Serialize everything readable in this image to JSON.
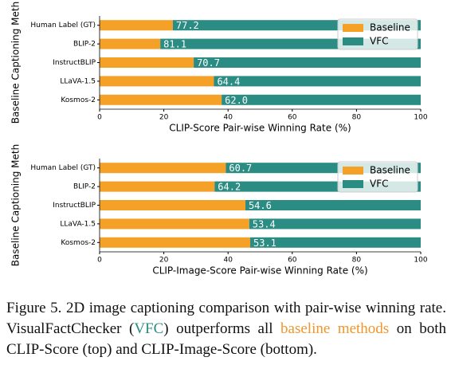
{
  "chart_data": [
    {
      "type": "bar",
      "orientation": "horizontal",
      "stacked": true,
      "ylabel": "Baseline Captioning Meth",
      "xlabel": "CLIP-Score Pair-wise Winning Rate (%)",
      "categories": [
        "Human Label (GT)",
        "BLIP-2",
        "InstructBLIP",
        "LLaVA-1.5",
        "Kosmos-2"
      ],
      "series": [
        {
          "name": "Baseline",
          "color": "#f5a128",
          "values": [
            22.8,
            18.9,
            29.3,
            35.6,
            38.0
          ]
        },
        {
          "name": "VFC",
          "color": "#2a8c82",
          "values": [
            77.2,
            81.1,
            70.7,
            64.4,
            62.0
          ],
          "value_labels": [
            "77.2",
            "81.1",
            "70.7",
            "64.4",
            "62.0"
          ]
        }
      ],
      "xlim": [
        0,
        100
      ],
      "xticks": [
        0,
        20,
        40,
        60,
        80,
        100
      ],
      "legend": "upper right"
    },
    {
      "type": "bar",
      "orientation": "horizontal",
      "stacked": true,
      "ylabel": "Baseline Captioning Meth",
      "xlabel": "CLIP-Image-Score Pair-wise Winning Rate (%)",
      "categories": [
        "Human Label (GT)",
        "BLIP-2",
        "InstructBLIP",
        "LLaVA-1.5",
        "Kosmos-2"
      ],
      "series": [
        {
          "name": "Baseline",
          "color": "#f5a128",
          "values": [
            39.3,
            35.8,
            45.4,
            46.6,
            46.9
          ]
        },
        {
          "name": "VFC",
          "color": "#2a8c82",
          "values": [
            60.7,
            64.2,
            54.6,
            53.4,
            53.1
          ],
          "value_labels": [
            "60.7",
            "64.2",
            "54.6",
            "53.4",
            "53.1"
          ]
        }
      ],
      "xlim": [
        0,
        100
      ],
      "xticks": [
        0,
        20,
        40,
        60,
        80,
        100
      ],
      "legend": "upper right"
    }
  ],
  "caption": [
    "Figure 5. 2D image captioning comparison with pair-wise winning rate. VisualFactChecker (",
    "VFC",
    ") outperforms all ",
    "baseline methods",
    " on both CLIP-Score (top) and CLIP-Image-Score (bottom)."
  ]
}
